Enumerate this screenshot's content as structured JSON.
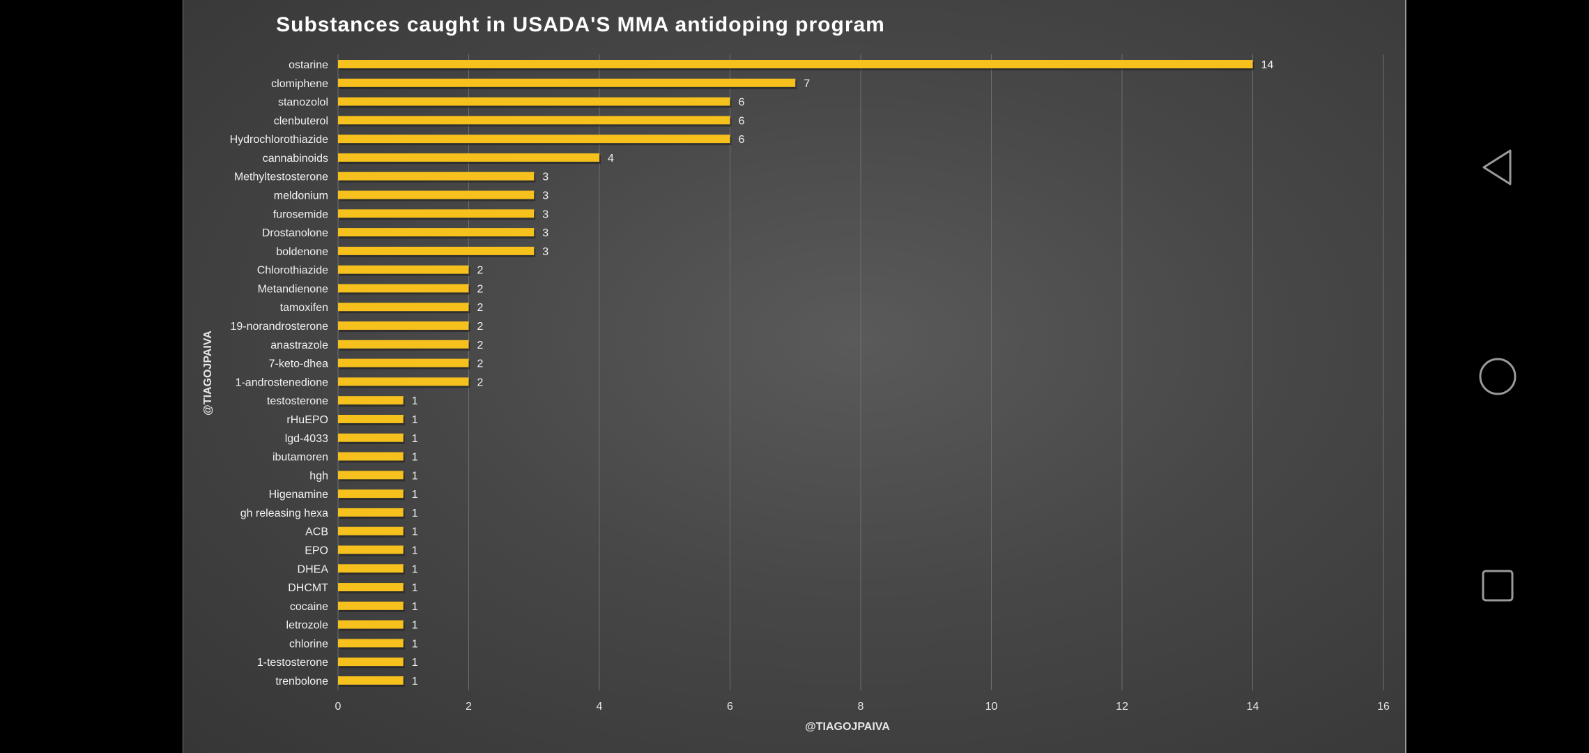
{
  "chart_data": {
    "type": "bar",
    "orientation": "horizontal",
    "title": "Substances caught in USADA'S MMA antidoping program",
    "xlabel": "@TIAGOJPAIVA",
    "ylabel": "@TIAGOJPAIVA",
    "xlim": [
      0,
      16
    ],
    "x_ticks": [
      0,
      2,
      4,
      6,
      8,
      10,
      12,
      14,
      16
    ],
    "grid": true,
    "bar_color": "#f6c11c",
    "categories": [
      "ostarine",
      "clomiphene",
      "stanozolol",
      "clenbuterol",
      "Hydrochlorothiazide",
      "cannabinoids",
      "Methyltestosterone",
      "meldonium",
      "furosemide",
      "Drostanolone",
      "boldenone",
      "Chlorothiazide",
      "Metandienone",
      "tamoxifen",
      "19-norandrosterone",
      "anastrazole",
      "7-keto-dhea",
      "1-androstenedione",
      "testosterone",
      "rHuEPO",
      "lgd-4033",
      "ibutamoren",
      "hgh",
      "Higenamine",
      "gh releasing hexa",
      "ACB",
      "EPO",
      "DHEA",
      "DHCMT",
      "cocaine",
      "letrozole",
      "chlorine",
      "1-testosterone",
      "trenbolone"
    ],
    "values": [
      14,
      7,
      6,
      6,
      6,
      4,
      3,
      3,
      3,
      3,
      3,
      2,
      2,
      2,
      2,
      2,
      2,
      2,
      1,
      1,
      1,
      1,
      1,
      1,
      1,
      1,
      1,
      1,
      1,
      1,
      1,
      1,
      1,
      1
    ]
  },
  "nav": {
    "back_icon": "triangle-back-icon",
    "home_icon": "circle-home-icon",
    "recents_icon": "square-recents-icon"
  }
}
